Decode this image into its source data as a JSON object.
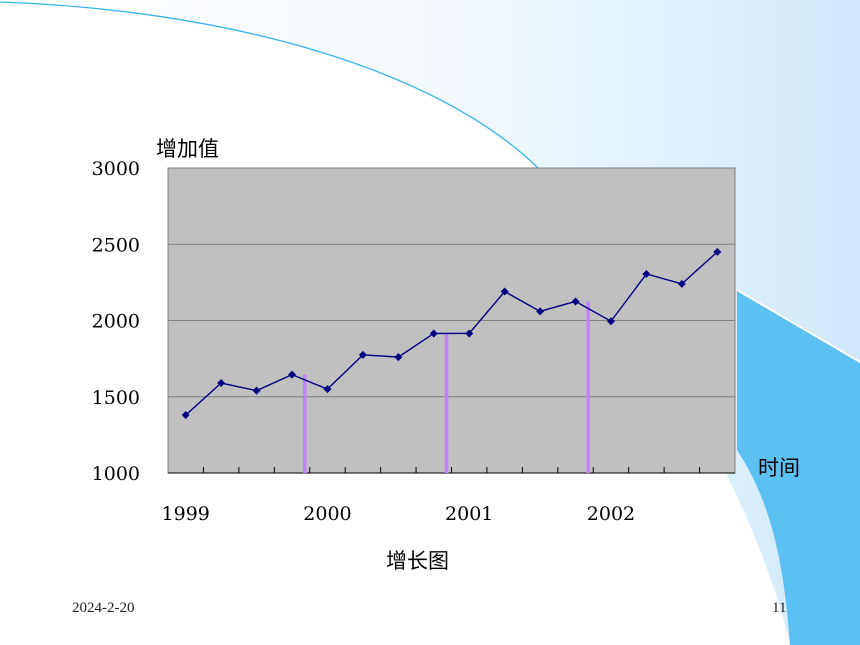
{
  "chart_data": {
    "type": "line",
    "title": "",
    "ylabel": "增加值",
    "xlabel": "时间",
    "caption": "增长图",
    "ylim": [
      1000,
      3000
    ],
    "yticks": [
      1000,
      1500,
      2000,
      2500,
      3000
    ],
    "x_tick_labels": [
      "1999",
      "2000",
      "2001",
      "2002"
    ],
    "grid": true,
    "series": [
      {
        "values": [
          1380,
          1590,
          1540,
          1645,
          1550,
          1775,
          1760,
          1915,
          1915,
          2190,
          2060,
          2125,
          1995,
          2305,
          2240,
          2450
        ]
      }
    ],
    "markers": [
      4,
      8,
      12
    ],
    "colors": {
      "line": "#000080",
      "plot_bg": "#c0c0c0",
      "marker_bar": "#c080ff"
    }
  },
  "footer": {
    "date": "2024-2-20",
    "page": "11"
  }
}
